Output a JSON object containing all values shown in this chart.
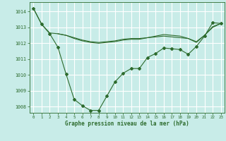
{
  "background_color": "#c8ece8",
  "grid_color": "#ffffff",
  "line_color": "#2d6b2d",
  "xlabel": "Graphe pression niveau de la mer (hPa)",
  "xlim": [
    -0.5,
    23.5
  ],
  "ylim": [
    1007.6,
    1014.6
  ],
  "yticks": [
    1008,
    1009,
    1010,
    1011,
    1012,
    1013,
    1014
  ],
  "xticks": [
    0,
    1,
    2,
    3,
    4,
    5,
    6,
    7,
    8,
    9,
    10,
    11,
    12,
    13,
    14,
    15,
    16,
    17,
    18,
    19,
    20,
    21,
    22,
    23
  ],
  "series_main": {
    "x": [
      0,
      1,
      2,
      3,
      4,
      5,
      6,
      7,
      8,
      9,
      10,
      11,
      12,
      13,
      14,
      15,
      16,
      17,
      18,
      19,
      20,
      21,
      22,
      23
    ],
    "y": [
      1014.2,
      1013.2,
      1012.6,
      1011.75,
      1010.05,
      1008.45,
      1008.05,
      1007.75,
      1007.75,
      1008.65,
      1009.55,
      1010.1,
      1010.4,
      1010.4,
      1011.1,
      1011.35,
      1011.7,
      1011.65,
      1011.6,
      1011.3,
      1011.8,
      1012.45,
      1013.3,
      1013.25
    ]
  },
  "series_upper": {
    "x": [
      0,
      1,
      2,
      3,
      4,
      5,
      6,
      7,
      8,
      9,
      10,
      11,
      12,
      13,
      14,
      15,
      16,
      17,
      18,
      19,
      20,
      21,
      22,
      23
    ],
    "y": [
      1014.2,
      1013.2,
      1012.65,
      1012.6,
      1012.5,
      1012.3,
      1012.15,
      1012.05,
      1012.0,
      1012.05,
      1012.1,
      1012.2,
      1012.25,
      1012.25,
      1012.35,
      1012.45,
      1012.55,
      1012.5,
      1012.45,
      1012.3,
      1012.05,
      1012.5,
      1013.05,
      1013.25
    ]
  },
  "series_flat": {
    "x": [
      3,
      4,
      5,
      6,
      7,
      8,
      9,
      10,
      11,
      12,
      13,
      14,
      15,
      16,
      17,
      18,
      19,
      20,
      21,
      22,
      23
    ],
    "y": [
      1012.6,
      1012.5,
      1012.35,
      1012.2,
      1012.1,
      1012.05,
      1012.1,
      1012.15,
      1012.25,
      1012.3,
      1012.3,
      1012.35,
      1012.4,
      1012.45,
      1012.4,
      1012.35,
      1012.3,
      1012.1,
      1012.5,
      1013.0,
      1013.25
    ]
  }
}
